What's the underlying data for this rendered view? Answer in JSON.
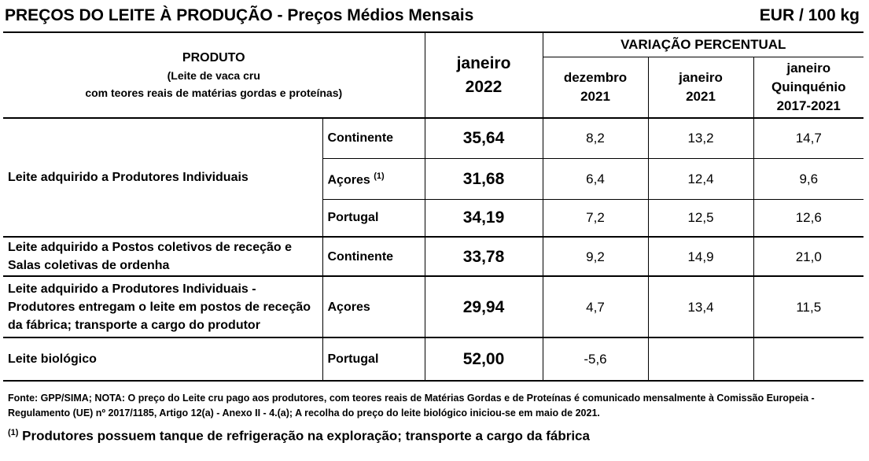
{
  "header": {
    "title": "PREÇOS DO LEITE À PRODUÇÃO - Preços Médios Mensais",
    "unit": "EUR / 100 kg"
  },
  "table": {
    "col_produto": "PRODUTO",
    "col_produto_sub1": "(Leite de vaca cru",
    "col_produto_sub2": "com teores reais de matérias gordas e proteínas)",
    "col_current_l1": "janeiro",
    "col_current_l2": "2022",
    "col_variacao": "VARIAÇÃO PERCENTUAL",
    "var_cols": [
      {
        "l1": "dezembro",
        "l2": "2021",
        "l3": ""
      },
      {
        "l1": "janeiro",
        "l2": "2021",
        "l3": ""
      },
      {
        "l1": "janeiro",
        "l2": "Quinquénio",
        "l3": "2017-2021"
      }
    ],
    "groups": [
      {
        "label_l1": "Leite adquirido a Produtores Individuais",
        "label_l2": "",
        "label_l3": ""
      },
      {
        "label_l1": "Leite adquirido a Postos coletivos de receção e",
        "label_l2": "Salas coletivas de ordenha",
        "label_l3": ""
      },
      {
        "label_l1": "Leite adquirido a Produtores Individuais -",
        "label_l2": "Produtores entregam o leite em postos de receção",
        "label_l3": "da fábrica; transporte a cargo do produtor"
      },
      {
        "label_l1": "Leite biológico",
        "label_l2": "",
        "label_l3": ""
      }
    ],
    "rows": [
      {
        "region": "Continente",
        "sup": "",
        "value": "35,64",
        "v1": "8,2",
        "v2": "13,2",
        "v3": "14,7"
      },
      {
        "region": "Açores",
        "sup": "(1)",
        "value": "31,68",
        "v1": "6,4",
        "v2": "12,4",
        "v3": "9,6"
      },
      {
        "region": "Portugal",
        "sup": "",
        "value": "34,19",
        "v1": "7,2",
        "v2": "12,5",
        "v3": "12,6"
      },
      {
        "region": "Continente",
        "sup": "",
        "value": "33,78",
        "v1": "9,2",
        "v2": "14,9",
        "v3": "21,0"
      },
      {
        "region": "Açores",
        "sup": "",
        "value": "29,94",
        "v1": "4,7",
        "v2": "13,4",
        "v3": "11,5"
      },
      {
        "region": "Portugal",
        "sup": "",
        "value": "52,00",
        "v1": "-5,6",
        "v2": "",
        "v3": ""
      }
    ]
  },
  "source": "Fonte: GPP/SIMA; NOTA: O preço do Leite cru pago aos produtores, com teores reais de Matérias Gordas e de Proteínas é comunicado mensalmente à  Comissão Europeia - Regulamento (UE) nº 2017/1185, Artigo 12(a) - Anexo II - 4.(a); A recolha do preço do leite biológico iniciou-se em maio de 2021.",
  "footnote": {
    "marker": "(1)",
    "text": " Produtores possuem tanque de refrigeração na exploração; transporte a cargo da fábrica"
  }
}
